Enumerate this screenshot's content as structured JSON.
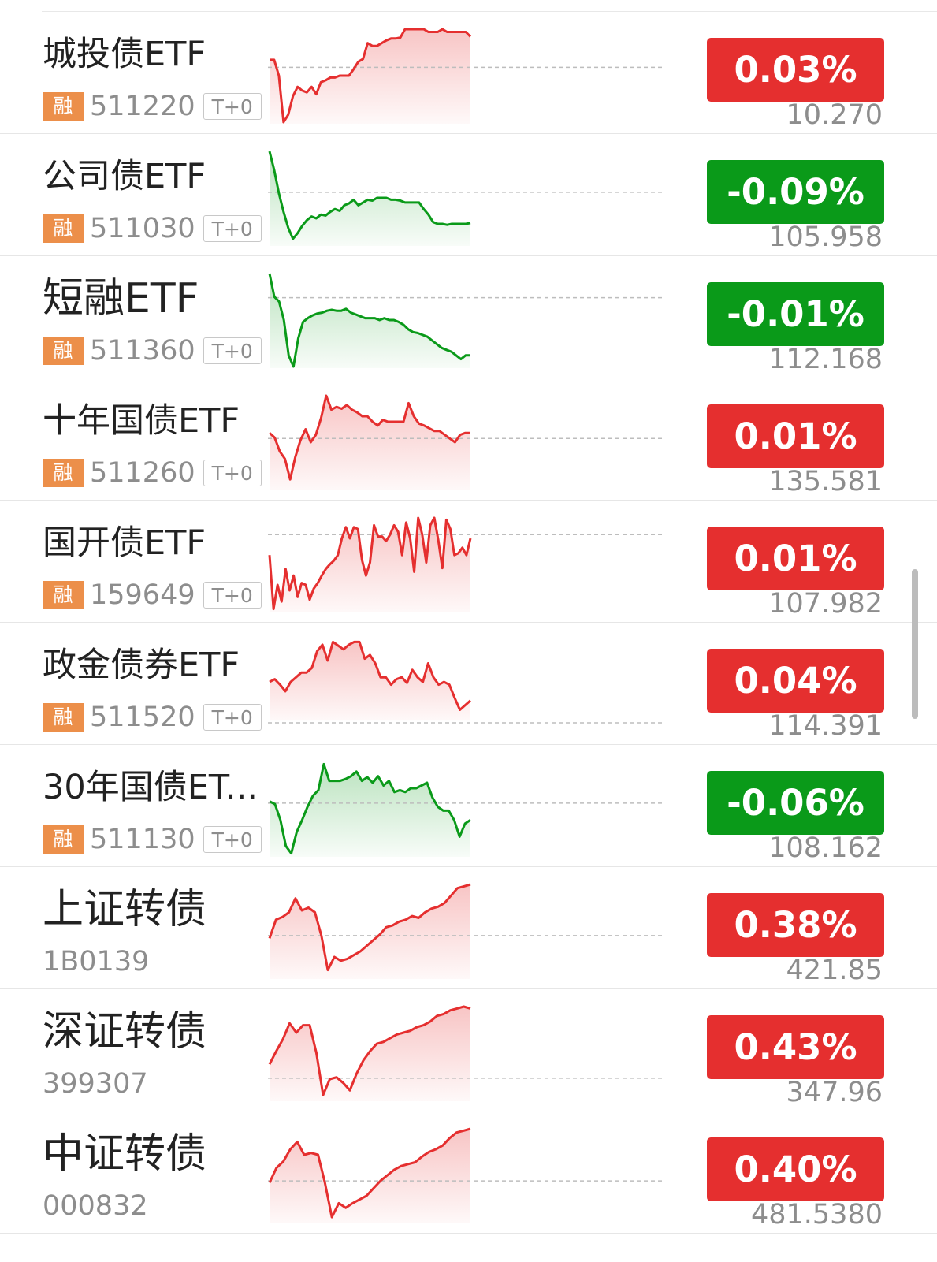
{
  "colors": {
    "up": "#e52f2f",
    "down": "#0a9a19",
    "rong_badge": "#ec8f4a"
  },
  "rows": [
    {
      "name": "城投债ETF",
      "badge": "融",
      "code": "511220",
      "t0": "T+0",
      "pct": "0.03%",
      "price": "10.270",
      "trend": "up",
      "spark": [
        0.33,
        0.33,
        0.5,
        1.0,
        0.92,
        0.72,
        0.62,
        0.66,
        0.68,
        0.62,
        0.7,
        0.57,
        0.55,
        0.52,
        0.52,
        0.5,
        0.5,
        0.5,
        0.43,
        0.35,
        0.32,
        0.15,
        0.18,
        0.18,
        0.15,
        0.12,
        0.1,
        0.1,
        0.09,
        0.0,
        0.0,
        0.0,
        0.0,
        0.0,
        0.03,
        0.03,
        0.03,
        0.0,
        0.03,
        0.03,
        0.03,
        0.03,
        0.03,
        0.08
      ],
      "baseline": 0.41,
      "fill_down_to": 1.0
    },
    {
      "name": "公司债ETF",
      "badge": "融",
      "code": "511030",
      "t0": "T+0",
      "pct": "-0.09%",
      "price": "105.958",
      "trend": "down",
      "spark": [
        0.0,
        0.2,
        0.45,
        0.65,
        0.82,
        0.94,
        0.88,
        0.8,
        0.74,
        0.7,
        0.72,
        0.68,
        0.69,
        0.65,
        0.62,
        0.64,
        0.58,
        0.56,
        0.52,
        0.58,
        0.55,
        0.52,
        0.53,
        0.5,
        0.5,
        0.5,
        0.52,
        0.52,
        0.53,
        0.55,
        0.55,
        0.55,
        0.55,
        0.62,
        0.68,
        0.76,
        0.78,
        0.78,
        0.79,
        0.78,
        0.78,
        0.78,
        0.78,
        0.77
      ],
      "baseline": 0.44,
      "fill_down_to": 1.0
    },
    {
      "name": "短融ETF",
      "badge": "融",
      "code": "511360",
      "t0": "T+0",
      "pct": "-0.01%",
      "price": "112.168",
      "trend": "down",
      "spark": [
        0.0,
        0.25,
        0.3,
        0.5,
        0.88,
        1.0,
        0.7,
        0.52,
        0.48,
        0.45,
        0.43,
        0.42,
        0.4,
        0.39,
        0.4,
        0.4,
        0.38,
        0.42,
        0.44,
        0.46,
        0.48,
        0.48,
        0.48,
        0.5,
        0.48,
        0.5,
        0.5,
        0.52,
        0.55,
        0.6,
        0.63,
        0.64,
        0.66,
        0.68,
        0.72,
        0.76,
        0.8,
        0.82,
        0.84,
        0.88,
        0.92,
        0.88,
        0.88
      ],
      "baseline": 0.26,
      "fill_down_to": 1.0
    },
    {
      "name": "十年国债ETF",
      "badge": "融",
      "code": "511260",
      "t0": "T+0",
      "pct": "0.01%",
      "price": "135.581",
      "trend": "up",
      "spark": [
        0.4,
        0.45,
        0.6,
        0.68,
        0.9,
        0.66,
        0.48,
        0.36,
        0.5,
        0.42,
        0.24,
        0.0,
        0.15,
        0.12,
        0.14,
        0.1,
        0.15,
        0.18,
        0.22,
        0.22,
        0.28,
        0.32,
        0.26,
        0.28,
        0.28,
        0.28,
        0.28,
        0.08,
        0.22,
        0.3,
        0.32,
        0.35,
        0.38,
        0.38,
        0.42,
        0.46,
        0.5,
        0.42,
        0.4,
        0.4
      ],
      "baseline": 0.46,
      "fill_down_to": 1.0
    },
    {
      "name": "国开债ETF",
      "badge": "融",
      "code": "159649",
      "t0": "T+0",
      "pct": "0.01%",
      "price": "107.982",
      "trend": "up",
      "spark": [
        0.4,
        0.98,
        0.72,
        0.9,
        0.55,
        0.78,
        0.62,
        0.85,
        0.7,
        0.72,
        0.88,
        0.76,
        0.7,
        0.62,
        0.55,
        0.5,
        0.46,
        0.4,
        0.22,
        0.1,
        0.22,
        0.1,
        0.12,
        0.45,
        0.62,
        0.48,
        0.08,
        0.2,
        0.2,
        0.25,
        0.18,
        0.08,
        0.15,
        0.4,
        0.05,
        0.22,
        0.58,
        0.0,
        0.18,
        0.48,
        0.08,
        0.0,
        0.24,
        0.54,
        0.02,
        0.12,
        0.4,
        0.38,
        0.32,
        0.4,
        0.22
      ],
      "baseline": 0.18,
      "fill_down_to": 1.0
    },
    {
      "name": "政金债券ETF",
      "badge": "融",
      "code": "511520",
      "t0": "T+0",
      "pct": "0.04%",
      "price": "114.391",
      "trend": "up",
      "spark": [
        0.45,
        0.42,
        0.48,
        0.55,
        0.45,
        0.4,
        0.35,
        0.35,
        0.3,
        0.12,
        0.05,
        0.22,
        0.02,
        0.06,
        0.1,
        0.05,
        0.02,
        0.02,
        0.2,
        0.16,
        0.25,
        0.4,
        0.4,
        0.48,
        0.42,
        0.4,
        0.46,
        0.32,
        0.4,
        0.45,
        0.25,
        0.4,
        0.48,
        0.45,
        0.48,
        0.62,
        0.75,
        0.7,
        0.65
      ],
      "baseline": 0.89,
      "fill_down_to": 0.85
    },
    {
      "name": "30年国债ET...",
      "badge": "融",
      "code": "511130",
      "t0": "T+0",
      "pct": "-0.06%",
      "price": "108.162",
      "trend": "down",
      "spark": [
        0.42,
        0.45,
        0.62,
        0.9,
        0.98,
        0.75,
        0.62,
        0.48,
        0.36,
        0.3,
        0.02,
        0.2,
        0.2,
        0.2,
        0.18,
        0.15,
        0.1,
        0.2,
        0.16,
        0.22,
        0.15,
        0.25,
        0.2,
        0.32,
        0.3,
        0.32,
        0.28,
        0.28,
        0.25,
        0.22,
        0.38,
        0.48,
        0.52,
        0.52,
        0.62,
        0.8,
        0.66,
        0.62
      ],
      "baseline": 0.44,
      "fill_down_to": 1.0
    },
    {
      "name": "上证转债",
      "badge": "",
      "code": "1B0139",
      "t0": "",
      "pct": "0.38%",
      "price": "421.85",
      "trend": "up",
      "spark": [
        0.58,
        0.38,
        0.35,
        0.3,
        0.15,
        0.28,
        0.25,
        0.3,
        0.55,
        0.92,
        0.78,
        0.82,
        0.8,
        0.76,
        0.72,
        0.66,
        0.6,
        0.54,
        0.46,
        0.44,
        0.4,
        0.38,
        0.34,
        0.36,
        0.3,
        0.26,
        0.24,
        0.2,
        0.12,
        0.04,
        0.02,
        0.0
      ],
      "baseline": 0.55,
      "fill_down_to": 1.0
    },
    {
      "name": "深证转债",
      "badge": "",
      "code": "399307",
      "t0": "",
      "pct": "0.43%",
      "price": "347.96",
      "trend": "up",
      "spark": [
        0.62,
        0.48,
        0.35,
        0.18,
        0.28,
        0.2,
        0.2,
        0.5,
        0.95,
        0.78,
        0.76,
        0.82,
        0.9,
        0.72,
        0.58,
        0.48,
        0.4,
        0.38,
        0.34,
        0.3,
        0.28,
        0.26,
        0.22,
        0.2,
        0.16,
        0.1,
        0.08,
        0.04,
        0.02,
        0.0,
        0.02
      ],
      "baseline": 0.77,
      "fill_down_to": 1.0
    },
    {
      "name": "中证转债",
      "badge": "",
      "code": "000832",
      "t0": "",
      "pct": "0.40%",
      "price": "481.5380",
      "trend": "up",
      "spark": [
        0.58,
        0.42,
        0.35,
        0.22,
        0.14,
        0.28,
        0.26,
        0.28,
        0.58,
        0.95,
        0.8,
        0.85,
        0.8,
        0.76,
        0.72,
        0.64,
        0.56,
        0.5,
        0.44,
        0.4,
        0.38,
        0.36,
        0.3,
        0.25,
        0.22,
        0.18,
        0.1,
        0.04,
        0.02,
        0.0
      ],
      "baseline": 0.56,
      "fill_down_to": 1.0
    }
  ]
}
